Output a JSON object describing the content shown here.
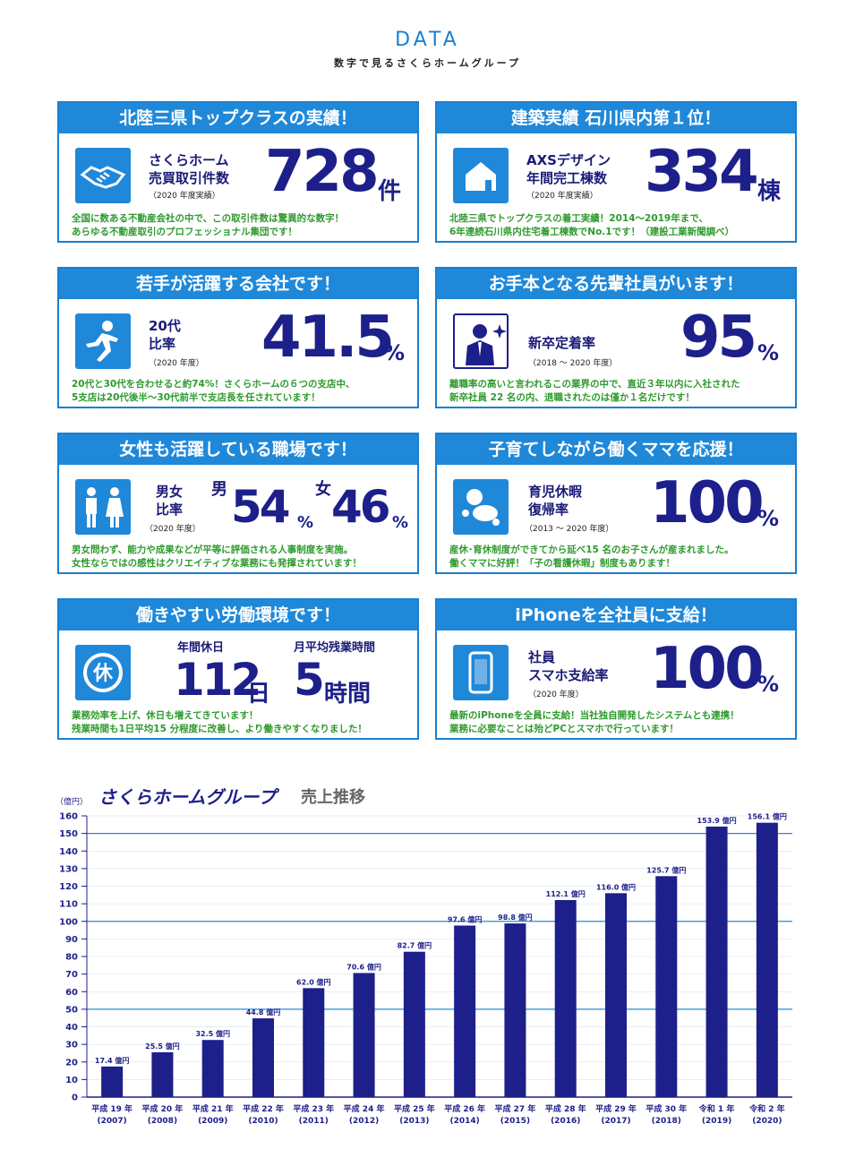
{
  "header": {
    "title": "DATA",
    "subtitle": "数字で見るさくらホームグループ"
  },
  "colors": {
    "accent": "#1f88d9",
    "number": "#1d1f8a",
    "desc": "#2e9a2e",
    "bar": "#1d1f8a"
  },
  "cards": [
    {
      "title": "北陸三県トップクラスの実績！",
      "icon": "handshake-icon",
      "label1": "さくらホーム",
      "label2": "売買取引件数",
      "year": "（2020 年度実績）",
      "value": "728",
      "unit": "件",
      "desc1": "全国に数ある不動産会社の中で、この取引件数は驚異的な数字！",
      "desc2": "あらゆる不動産取引のプロフェッショナル集団です！"
    },
    {
      "title": "建築実績 石川県内第１位！",
      "icon": "house-icon",
      "label1": "AXSデザイン",
      "label2": "年間完工棟数",
      "year": "（2020 年度実績）",
      "value": "334",
      "unit": "棟",
      "desc1": "北陸三県でトップクラスの着工実績！2014〜2019年まで、",
      "desc2": "6年連続石川県内住宅着工棟数でNo.1です！（建設工業新聞調べ）"
    },
    {
      "title": "若手が活躍する会社です！",
      "icon": "runner-icon",
      "label1": "20代",
      "label2": "比率",
      "year": "（2020 年度）",
      "value": "41.5",
      "unit": "%",
      "desc1": "20代と30代を合わせると約74%！さくらホームの６つの支店中、",
      "desc2": "5支店は20代後半〜30代前半で支店長を任されています！"
    },
    {
      "title": "お手本となる先輩社員がいます！",
      "icon": "businessman-icon",
      "label1": "新卒定着率",
      "label2": "",
      "year": "（2018 〜 2020 年度）",
      "value": "95",
      "unit": "%",
      "desc1": "離職率の高いと言われるこの業界の中で、直近３年以内に入社された",
      "desc2": "新卒社員 22 名の内、退職されたのは僅か１名だけです！"
    },
    {
      "title": "女性も活躍している職場です！",
      "icon": "male-female-icon",
      "label1": "男女",
      "label2": "比率",
      "year": "（2020 年度）",
      "male_label": "男",
      "male_value": "54",
      "female_label": "女",
      "female_value": "46",
      "unit": "%",
      "desc1": "男女問わず、能力や成果などが平等に評価される人事制度を実施。",
      "desc2": "女性ならではの感性はクリエイティブな業務にも発揮されています！"
    },
    {
      "title": "子育てしながら働くママを応援！",
      "icon": "baby-icon",
      "label1": "育児休暇",
      "label2": "復帰率",
      "year": "（2013 〜 2020 年度）",
      "value": "100",
      "unit": "%",
      "desc1": "産休･育休制度ができてから延べ15 名のお子さんが産まれました。",
      "desc2": "働くママに好評！「子の看護休暇」制度もあります！"
    },
    {
      "title": "働きやすい労働環境です！",
      "icon": "holiday-icon",
      "holiday_label": "年間休日",
      "holiday_value": "112",
      "holiday_unit": "日",
      "overtime_label": "月平均残業時間",
      "overtime_value": "5",
      "overtime_unit": "時間",
      "desc1": "業務効率を上げ、休日も増えてきています！",
      "desc2": "残業時間も1日平均15 分程度に改善し、より働きやすくなりました！"
    },
    {
      "title": "iPhoneを全社員に支給！",
      "icon": "smartphone-icon",
      "label1": "社員",
      "label2": "スマホ支給率",
      "year": "（2020 年度）",
      "value": "100",
      "unit": "%",
      "desc1": "最新のiPhoneを全員に支給！当社独自開発したシステムとも連携！",
      "desc2": "業務に必要なことは殆どPCとスマホで行っています！"
    }
  ],
  "chart_data": {
    "type": "bar",
    "title": "さくらホームグループ",
    "subtitle": "売上推移",
    "ylabel": "（億円）",
    "ylim": [
      0,
      160
    ],
    "yticks": [
      0,
      10,
      20,
      30,
      40,
      50,
      60,
      70,
      80,
      90,
      100,
      110,
      120,
      130,
      140,
      150,
      160
    ],
    "categories": [
      "平成 19 年",
      "平成 20 年",
      "平成 21 年",
      "平成 22 年",
      "平成 23 年",
      "平成 24 年",
      "平成 25 年",
      "平成 26 年",
      "平成 27 年",
      "平成 28 年",
      "平成 29 年",
      "平成 30 年",
      "令和 1 年",
      "令和 2 年"
    ],
    "years": [
      "(2007)",
      "(2008)",
      "(2009)",
      "(2010)",
      "(2011)",
      "(2012)",
      "(2013)",
      "(2014)",
      "(2015)",
      "(2016)",
      "(2017)",
      "(2018)",
      "(2019)",
      "(2020)"
    ],
    "values": [
      17.4,
      25.5,
      32.5,
      44.8,
      62.0,
      70.6,
      82.7,
      97.6,
      98.8,
      112.1,
      116.0,
      125.7,
      153.9,
      156.1
    ],
    "value_labels": [
      "17.4 億円",
      "25.5 億円",
      "32.5 億円",
      "44.8 億円",
      "62.0 億円",
      "70.6 億円",
      "82.7 億円",
      "97.6 億円",
      "98.8 億円",
      "112.1 億円",
      "116.0 億円",
      "125.7 億円",
      "153.9 億円",
      "156.1 億円"
    ],
    "grid": true
  }
}
